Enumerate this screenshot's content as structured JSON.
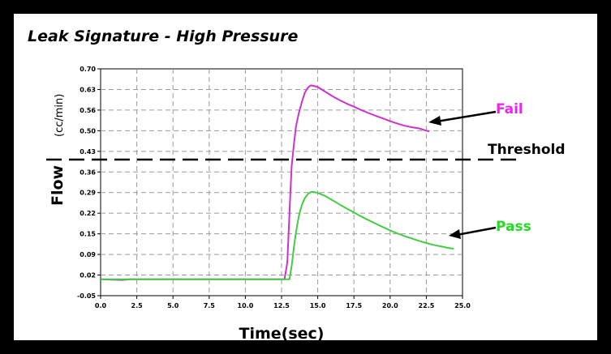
{
  "chart_data": {
    "type": "line",
    "title": "Leak Signature - High Pressure",
    "xlabel": "Time(sec)",
    "ylabel": "Flow",
    "ylabel_unit": "(cc/min)",
    "x_ticks": [
      "0.0",
      "2.5",
      "5.0",
      "7.5",
      "10.0",
      "12.5",
      "15.0",
      "17.5",
      "20.0",
      "22.5",
      "25.0"
    ],
    "y_ticks": [
      "0.70",
      "0.63",
      "0.56",
      "0.50",
      "0.43",
      "0.36",
      "0.29",
      "0.22",
      "0.15",
      "0.09",
      "0.02",
      "-0.05"
    ],
    "xlim": [
      0,
      25
    ],
    "ylim": [
      -0.05,
      0.7
    ],
    "grid": true,
    "threshold": {
      "label": "Threshold",
      "value": 0.4
    },
    "series": [
      {
        "name": "Fail",
        "color": "#cc33cc",
        "label_color": "#ee22ee",
        "x": [
          0,
          1.5,
          2,
          6,
          10,
          12.7,
          12.9,
          13.0,
          13.1,
          13.2,
          13.35,
          13.5,
          13.7,
          13.9,
          14.1,
          14.3,
          14.5,
          14.7,
          15.0,
          15.5,
          16.0,
          16.5,
          17.0,
          17.5,
          18.0,
          18.5,
          19.0,
          19.5,
          20.0,
          20.5,
          21.0,
          21.5,
          22.0,
          22.4,
          22.7
        ],
        "y": [
          0.004,
          0.002,
          0.004,
          0.004,
          0.004,
          0.004,
          0.06,
          0.17,
          0.28,
          0.38,
          0.45,
          0.51,
          0.555,
          0.59,
          0.62,
          0.637,
          0.645,
          0.644,
          0.64,
          0.625,
          0.61,
          0.597,
          0.585,
          0.575,
          0.564,
          0.554,
          0.545,
          0.536,
          0.527,
          0.519,
          0.512,
          0.507,
          0.503,
          0.497,
          0.493
        ]
      },
      {
        "name": "Pass",
        "color": "#44cc44",
        "label_color": "#22dd22",
        "x": [
          0,
          6,
          10,
          12.7,
          13.05,
          13.2,
          13.35,
          13.5,
          13.7,
          13.9,
          14.1,
          14.3,
          14.5,
          14.7,
          15.0,
          15.5,
          16.0,
          16.5,
          17.0,
          17.5,
          18.0,
          18.5,
          19.0,
          19.5,
          20.0,
          20.5,
          21.0,
          21.5,
          22.0,
          22.5,
          23.0,
          23.5,
          24.0,
          24.4
        ],
        "y": [
          0.004,
          0.004,
          0.004,
          0.004,
          0.004,
          0.05,
          0.11,
          0.16,
          0.215,
          0.25,
          0.272,
          0.285,
          0.292,
          0.293,
          0.29,
          0.28,
          0.266,
          0.252,
          0.238,
          0.225,
          0.212,
          0.2,
          0.188,
          0.177,
          0.166,
          0.156,
          0.147,
          0.139,
          0.131,
          0.124,
          0.118,
          0.113,
          0.108,
          0.105
        ]
      }
    ]
  }
}
